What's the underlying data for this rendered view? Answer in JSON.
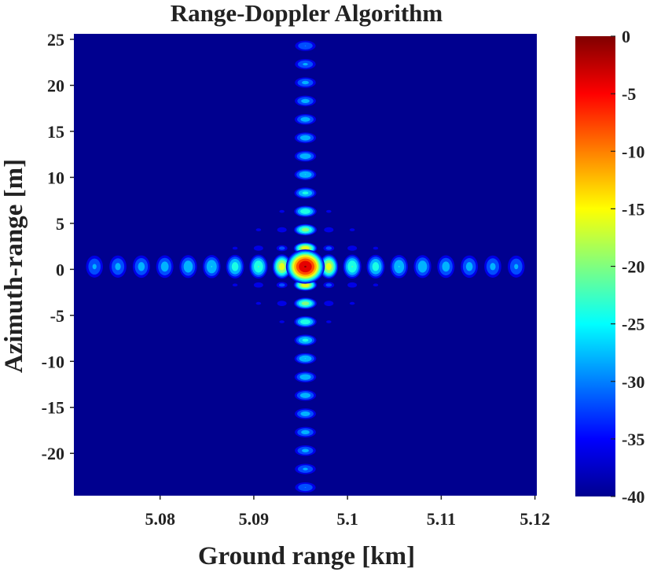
{
  "chart_data": {
    "type": "heatmap",
    "title": "Range-Doppler Algorithm",
    "xlabel": "Ground range [km]",
    "ylabel": "Azimuth-range [m]",
    "xlim": [
      5.0708,
      5.1202
    ],
    "ylim": [
      -24.6,
      25.6
    ],
    "x_ticks": [
      "5.08",
      "5.09",
      "5.1",
      "5.11",
      "5.12"
    ],
    "x_tick_values": [
      5.08,
      5.09,
      5.1,
      5.11,
      5.12
    ],
    "y_ticks": [
      "25",
      "20",
      "15",
      "10",
      "5",
      "0",
      "-5",
      "-10",
      "-15",
      "-20"
    ],
    "y_tick_values": [
      25,
      20,
      15,
      10,
      5,
      0,
      -5,
      -10,
      -15,
      -20
    ],
    "colorbar": {
      "colormap": "jet",
      "range": [
        -40,
        0
      ],
      "ticks": [
        "0",
        "-5",
        "-10",
        "-15",
        "-20",
        "-25",
        "-30",
        "-35",
        "-40"
      ],
      "tick_values": [
        0,
        -5,
        -10,
        -15,
        -20,
        -25,
        -30,
        -35,
        -40
      ]
    },
    "peak": {
      "x": 5.0955,
      "y": 0.3,
      "value": 0
    },
    "sidelobe_spacing": {
      "range_km": 0.0025,
      "azimuth_m": 2.0
    },
    "range_sidelobes_db": [
      -14,
      -20,
      -22,
      -24,
      -25,
      -26,
      -26.5,
      -27,
      -27.5,
      -28,
      -28.5
    ],
    "azimuth_sidelobes_db": [
      -13,
      -18,
      -21,
      -23,
      -24,
      -25,
      -25.5,
      -26,
      -26.5,
      -27,
      -27.5,
      -28
    ],
    "background_db": -40,
    "grid": false,
    "background_color": "#00008f"
  }
}
